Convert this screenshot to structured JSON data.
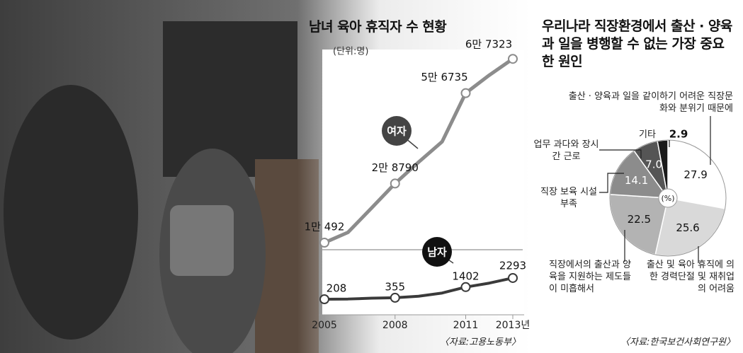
{
  "chart_data": [
    {
      "type": "line",
      "title": "남녀 육아 휴직자 수 현황",
      "subtitle": "(단위:명)",
      "source": "〈자료:고용노동부〉",
      "x": [
        2005,
        2006,
        2007,
        2008,
        2009,
        2010,
        2011,
        2012,
        2013
      ],
      "xlim": [
        2005,
        2013
      ],
      "xticks": [
        2005,
        2008,
        2011,
        {
          "value": 2013,
          "label": "2013년"
        }
      ],
      "ylim": [
        0,
        70000
      ],
      "y2lim": [
        0,
        2500
      ],
      "series": [
        {
          "name": "여자",
          "color": "#8c8c8c",
          "values": [
            10492,
            13670,
            21185,
            28790,
            35400,
            41736,
            56735,
            62281,
            67323
          ],
          "value_labels": [
            "1만 492",
            null,
            null,
            "2만 8790",
            null,
            null,
            "5만 6735",
            null,
            "6만 7323"
          ]
        },
        {
          "name": "남자",
          "color": "#3a3a3a",
          "axis": "y2",
          "values": [
            208,
            230,
            310,
            355,
            502,
            819,
            1402,
            1790,
            2293
          ]
        }
      ]
    },
    {
      "type": "pie",
      "title": "우리나라 직장환경에서 출산 · 양육과 일을 병행할 수 없는 가장 중요한 원인",
      "center_label": "(%)",
      "source": "〈자료:한국보건사회연구원〉",
      "categories": [
        "출산 · 양육과 일을 같이하기 어려운 직장문화와 분위기 때문에",
        "출산 및 육아 휴직에 의한 경력단절 및 재취업의 어려움",
        "직장에서의 출산과 양육을 지원하는 제도들이 미흡해서",
        "직장 보육 시설 부족",
        "업무 과다와 장시간 근로",
        "기타"
      ],
      "values": [
        27.9,
        25.6,
        22.5,
        14.1,
        7,
        2.9
      ],
      "value_labels": [
        "27.9",
        "25.6",
        "22.5",
        "14.1",
        "7.0",
        "2.9"
      ],
      "colors": [
        "#ffffff",
        "#d9d9d9",
        "#b3b3b3",
        "#8c8c8c",
        "#555555",
        "#1a1a1a"
      ]
    }
  ]
}
